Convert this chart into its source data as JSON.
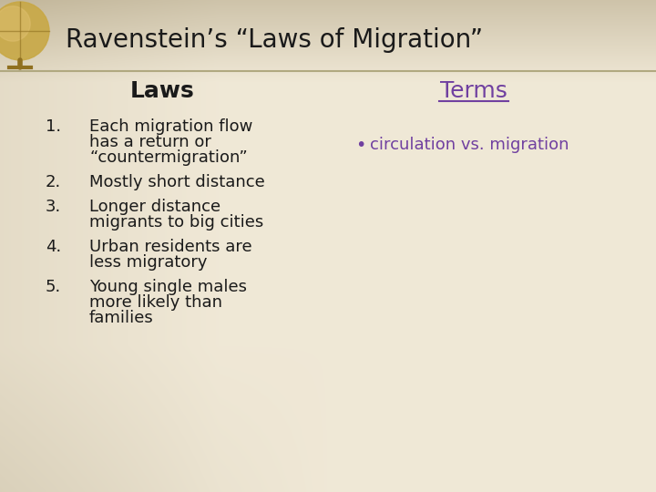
{
  "title": "Ravenstein’s “Laws of Migration”",
  "laws_header": "Laws",
  "terms_header": "Terms",
  "laws": [
    [
      "Each migration flow",
      "has a return or",
      "“countermigration”"
    ],
    [
      "Mostly short distance"
    ],
    [
      "Longer distance",
      "migrants to big cities"
    ],
    [
      "Urban residents are",
      "less migratory"
    ],
    [
      "Young single males",
      "more likely than",
      "families"
    ]
  ],
  "terms": [
    "circulation vs. migration"
  ],
  "bg_top_left": "#c8bc98",
  "bg_top_right": "#ede8d8",
  "bg_bottom_left": "#bdb49a",
  "bg_bottom_right": "#dedad0",
  "bg_center": "#f0ece0",
  "title_color": "#1a1a1a",
  "laws_header_color": "#1a1a1a",
  "terms_header_color": "#7040a0",
  "laws_color": "#1a1a1a",
  "terms_color": "#7040a0",
  "title_fontsize": 20,
  "laws_header_fontsize": 18,
  "terms_header_fontsize": 18,
  "body_fontsize": 13,
  "separator_color": "#b0a880"
}
